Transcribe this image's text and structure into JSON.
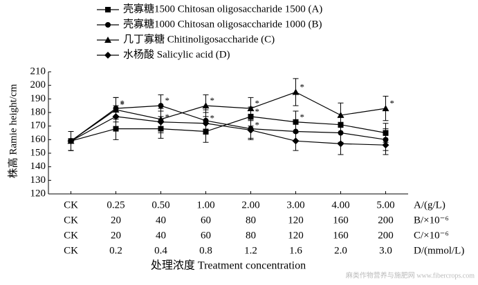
{
  "chart_data": {
    "type": "line",
    "y_label": "株高 Ramie height/cm",
    "x_label": "处理浓度 Treatment concentration",
    "categories": [
      "CK",
      "0.25",
      "0.50",
      "1.00",
      "2.00",
      "3.00",
      "4.00",
      "5.00"
    ],
    "categories_unit": "A/(g/L)",
    "extra_rows": [
      {
        "labels": [
          "CK",
          "20",
          "40",
          "60",
          "80",
          "120",
          "160",
          "200"
        ],
        "unit": "B/×10⁻⁶"
      },
      {
        "labels": [
          "CK",
          "20",
          "40",
          "60",
          "80",
          "120",
          "160",
          "200"
        ],
        "unit": "C/×10⁻⁶"
      },
      {
        "labels": [
          "CK",
          "0.2",
          "0.4",
          "0.8",
          "1.2",
          "1.6",
          "2.0",
          "3.0"
        ],
        "unit": "D/(mmol/L)"
      }
    ],
    "series": [
      {
        "name": "壳寡糖1500 Chitosan oligosaccharide 1500 (A)",
        "marker": "square",
        "color": "#000000",
        "values": [
          159,
          168,
          168,
          166,
          177,
          173,
          171,
          165
        ],
        "errors": [
          7,
          8,
          7,
          8,
          7,
          8,
          6,
          7
        ],
        "sig": [
          null,
          null,
          null,
          null,
          "*",
          "*",
          null,
          null
        ]
      },
      {
        "name": "壳寡糖1000 Chitosan oligosaccharide 1000 (B)",
        "marker": "circle",
        "color": "#000000",
        "values": [
          159,
          183,
          185,
          174,
          168,
          166,
          165,
          160
        ],
        "errors": [
          7,
          8,
          8,
          8,
          7,
          7,
          7,
          8
        ],
        "sig": [
          null,
          "*",
          "*",
          null,
          null,
          null,
          null,
          null
        ]
      },
      {
        "name": "几丁寡糖 Chitinoligosaccharide (C)",
        "marker": "triangle",
        "color": "#000000",
        "values": [
          159,
          182,
          175,
          185,
          183,
          195,
          178,
          183
        ],
        "errors": [
          7,
          9,
          8,
          8,
          8,
          10,
          9,
          9
        ],
        "sig": [
          null,
          "*",
          null,
          "*",
          "*",
          "*",
          null,
          "*"
        ]
      },
      {
        "name": "水杨酸 Salicylic acid (D)",
        "marker": "diamond",
        "color": "#000000",
        "values": [
          159,
          177,
          173,
          172,
          167,
          159,
          157,
          156
        ],
        "errors": [
          7,
          8,
          8,
          8,
          7,
          7,
          8,
          7
        ],
        "sig": [
          null,
          null,
          "*",
          "*",
          "*",
          null,
          null,
          null
        ]
      }
    ],
    "ylim": [
      120,
      210
    ],
    "yticks": [
      120,
      130,
      140,
      150,
      160,
      170,
      180,
      190,
      200,
      210
    ],
    "watermark": "麻类作物营养与施肥网 www.fibercrops.com"
  }
}
